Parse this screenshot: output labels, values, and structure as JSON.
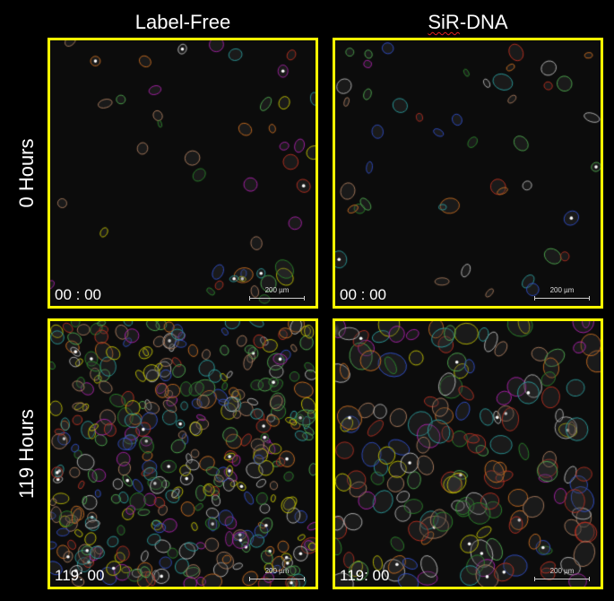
{
  "columns": [
    {
      "title_parts": [
        "",
        "SiR",
        "-DNA"
      ],
      "title": "Label-Free"
    },
    {
      "title": "SiR-DNA"
    }
  ],
  "col_titles": {
    "left": "Label-Free",
    "right_spellcheck": "SiR",
    "right_rest": "-DNA"
  },
  "rows": [
    {
      "title": "0 Hours"
    },
    {
      "title": "119 Hours"
    }
  ],
  "panels": [
    {
      "timestamp": "00 : 00",
      "scale_bar": "200 µm",
      "density": "sparse",
      "stain": "label-free"
    },
    {
      "timestamp": "00 : 00",
      "scale_bar": "200 µm",
      "density": "sparse",
      "stain": "sir-dna"
    },
    {
      "timestamp": "119: 00",
      "scale_bar": "200 µm",
      "density": "dense",
      "stain": "label-free"
    },
    {
      "timestamp": "119: 00",
      "scale_bar": "200 µm",
      "density": "dense",
      "stain": "sir-dna"
    }
  ],
  "colors": {
    "panel_border": "#ffff00",
    "background": "#000000",
    "outline_palette": [
      "#c8c800",
      "#2aa0a0",
      "#2a8a2a",
      "#b020b0",
      "#3050d0",
      "#c03020",
      "#b08060",
      "#50b050",
      "#c0c0c0",
      "#d07020"
    ]
  }
}
